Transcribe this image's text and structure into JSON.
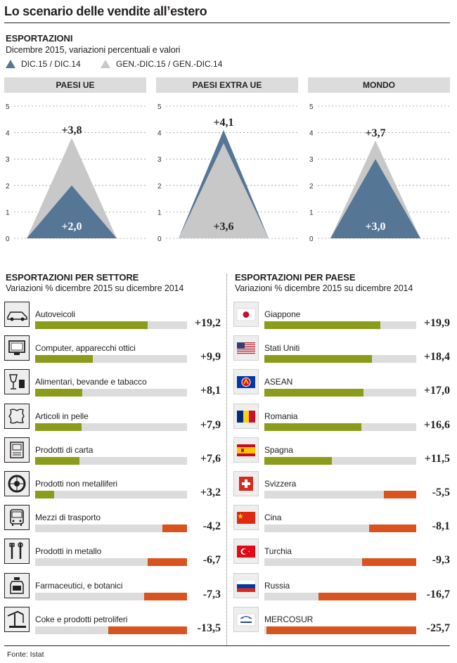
{
  "title": "Lo scenario delle vendite all’estero",
  "export_section": {
    "heading": "ESPORTAZIONI",
    "subheading": "Dicembre 2015, variazioni percentuali e valori",
    "legend_dark": "DIC.15 / DIC.14",
    "legend_light": "GEN.-DIC.15 / GEN.-DIC.14"
  },
  "colors": {
    "dark": "#567696",
    "light": "#c8c8c8",
    "positive": "#8b9b1a",
    "negative": "#d9531e",
    "track": "#dcdcdc"
  },
  "chart_data": [
    {
      "type": "area",
      "title": "PAESI UE",
      "ylim": [
        0,
        5
      ],
      "yticks": [
        "0",
        "1",
        "2",
        "3",
        "4",
        "5"
      ],
      "series": [
        {
          "name": "DIC.15 / DIC.14",
          "value": 2.0,
          "label": "+2,0"
        },
        {
          "name": "GEN.-DIC.15 / GEN.-DIC.14",
          "value": 3.8,
          "label": "+3,8"
        }
      ]
    },
    {
      "type": "area",
      "title": "PAESI EXTRA UE",
      "ylim": [
        0,
        5
      ],
      "yticks": [
        "0",
        "1",
        "2",
        "3",
        "4",
        "5"
      ],
      "series": [
        {
          "name": "DIC.15 / DIC.14",
          "value": 4.1,
          "label": "+4,1"
        },
        {
          "name": "GEN.-DIC.15 / GEN.-DIC.14",
          "value": 3.6,
          "label": "+3,6"
        }
      ]
    },
    {
      "type": "area",
      "title": "MONDO",
      "ylim": [
        0,
        5
      ],
      "yticks": [
        "0",
        "1",
        "2",
        "3",
        "4",
        "5"
      ],
      "series": [
        {
          "name": "DIC.15 / DIC.14",
          "value": 3.0,
          "label": "+3,0"
        },
        {
          "name": "GEN.-DIC.15 / GEN.-DIC.14",
          "value": 3.7,
          "label": "+3,7"
        }
      ]
    },
    {
      "type": "bar",
      "title": "ESPORTAZIONI PER SETTORE",
      "subtitle": "Variazioni % dicembre 2015 su dicembre 2014",
      "xlim": [
        -26,
        26
      ],
      "items": [
        {
          "label": "Autoveicoli",
          "value": 19.2,
          "display": "+19,2",
          "icon": "car-icon"
        },
        {
          "label": "Computer, apparecchi ottici",
          "value": 9.9,
          "display": "+9,9",
          "icon": "monitor-icon"
        },
        {
          "label": "Alimentari, bevande e tabacco",
          "value": 8.1,
          "display": "+8,1",
          "icon": "wine-glass-icon"
        },
        {
          "label": "Articoli in pelle",
          "value": 7.9,
          "display": "+7,9",
          "icon": "leather-hide-icon"
        },
        {
          "label": "Prodotti di carta",
          "value": 7.6,
          "display": "+7,6",
          "icon": "paper-icon"
        },
        {
          "label": "Prodotti non metalliferi",
          "value": 3.2,
          "display": "+3,2",
          "icon": "tire-icon"
        },
        {
          "label": "Mezzi di trasporto",
          "value": -4.2,
          "display": "-4,2",
          "icon": "bus-icon"
        },
        {
          "label": "Prodotti in metallo",
          "value": -6.7,
          "display": "-6,7",
          "icon": "tools-icon"
        },
        {
          "label": "Farmaceutici, e botanici",
          "value": -7.3,
          "display": "-7,3",
          "icon": "medicine-bottle-icon"
        },
        {
          "label": "Coke e prodotti petroliferi",
          "value": -13.5,
          "display": "-13,5",
          "icon": "oil-pump-icon"
        }
      ]
    },
    {
      "type": "bar",
      "title": "ESPORTAZIONI PER PAESE",
      "subtitle": "Variazioni % dicembre 2015 su dicembre 2014",
      "xlim": [
        -26,
        26
      ],
      "items": [
        {
          "label": "Giappone",
          "value": 19.9,
          "display": "+19,9",
          "icon": "japan-flag-icon"
        },
        {
          "label": "Stati Uniti",
          "value": 18.4,
          "display": "+18,4",
          "icon": "usa-flag-icon"
        },
        {
          "label": "ASEAN",
          "value": 17.0,
          "display": "+17,0",
          "icon": "asean-flag-icon"
        },
        {
          "label": "Romania",
          "value": 16.6,
          "display": "+16,6",
          "icon": "romania-flag-icon"
        },
        {
          "label": "Spagna",
          "value": 11.5,
          "display": "+11,5",
          "icon": "spain-flag-icon"
        },
        {
          "label": "Svizzera",
          "value": -5.5,
          "display": "-5,5",
          "icon": "switzerland-flag-icon"
        },
        {
          "label": "Cina",
          "value": -8.1,
          "display": "-8,1",
          "icon": "china-flag-icon"
        },
        {
          "label": "Turchia",
          "value": -9.3,
          "display": "-9,3",
          "icon": "turkey-flag-icon"
        },
        {
          "label": "Russia",
          "value": -16.7,
          "display": "-16,7",
          "icon": "russia-flag-icon"
        },
        {
          "label": "MERCOSUR",
          "value": -25.7,
          "display": "-25,7",
          "icon": "mercosur-flag-icon"
        }
      ]
    }
  ],
  "source": "Fonte: Istat"
}
